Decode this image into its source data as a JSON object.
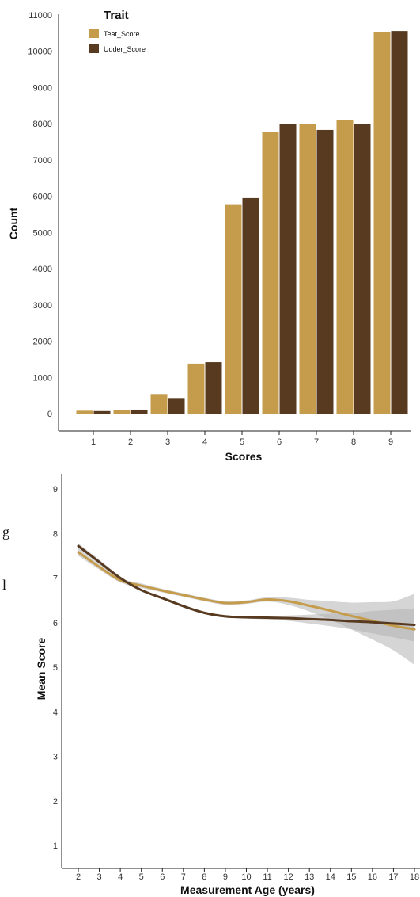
{
  "chart_data": [
    {
      "type": "bar",
      "title": "",
      "xlabel": "Scores",
      "ylabel": "Count",
      "categories": [
        "1",
        "2",
        "3",
        "4",
        "5",
        "6",
        "7",
        "8",
        "9"
      ],
      "ylim": [
        0,
        11000
      ],
      "yticks": [
        0,
        1000,
        2000,
        3000,
        4000,
        5000,
        6000,
        7000,
        8000,
        9000,
        10000,
        11000
      ],
      "legend": {
        "title": "Trait",
        "position": "top-left"
      },
      "series": [
        {
          "name": "Teat_Score",
          "color": "#c49c4c",
          "values": [
            80,
            100,
            540,
            1380,
            5760,
            7770,
            8000,
            8110,
            10520
          ]
        },
        {
          "name": "Udder_Score",
          "color": "#573a1f",
          "values": [
            70,
            110,
            430,
            1420,
            5950,
            8000,
            7830,
            8000,
            10560
          ]
        }
      ],
      "grid": false
    },
    {
      "type": "line",
      "title": "",
      "xlabel": "Measurement Age (years)",
      "ylabel": "Mean Score",
      "xticks": [
        2,
        3,
        4,
        5,
        6,
        7,
        8,
        9,
        10,
        11,
        12,
        13,
        14,
        15,
        16,
        17,
        18
      ],
      "yticks": [
        1,
        2,
        3,
        4,
        5,
        6,
        7,
        8,
        9
      ],
      "xlim": [
        2,
        18
      ],
      "ylim": [
        1,
        9
      ],
      "grid": false,
      "confidence_band_color": "#b3b3b3",
      "series": [
        {
          "color": "#c49c4c",
          "x": [
            2,
            3,
            4,
            5,
            6,
            7,
            8,
            9,
            10,
            11,
            12,
            13,
            14,
            15,
            16,
            17,
            18
          ],
          "y": [
            7.58,
            7.25,
            6.95,
            6.83,
            6.72,
            6.62,
            6.52,
            6.44,
            6.46,
            6.52,
            6.48,
            6.38,
            6.27,
            6.15,
            6.04,
            5.93,
            5.85
          ],
          "ci_lower": [
            7.5,
            7.19,
            6.9,
            6.78,
            6.68,
            6.58,
            6.48,
            6.4,
            6.42,
            6.47,
            6.4,
            6.25,
            6.06,
            5.85,
            5.62,
            5.38,
            5.05
          ],
          "ci_upper": [
            7.66,
            7.31,
            7.0,
            6.88,
            6.76,
            6.66,
            6.56,
            6.48,
            6.5,
            6.57,
            6.56,
            6.51,
            6.48,
            6.45,
            6.46,
            6.48,
            6.65
          ]
        },
        {
          "color": "#573a1f",
          "x": [
            2,
            3,
            4,
            5,
            6,
            7,
            8,
            9,
            10,
            11,
            12,
            13,
            14,
            15,
            16,
            17,
            18
          ],
          "y": [
            7.72,
            7.36,
            7.0,
            6.73,
            6.55,
            6.37,
            6.22,
            6.14,
            6.12,
            6.11,
            6.1,
            6.08,
            6.06,
            6.03,
            6.01,
            5.98,
            5.95
          ],
          "ci_lower": [
            7.66,
            7.31,
            6.96,
            6.7,
            6.52,
            6.34,
            6.19,
            6.11,
            6.09,
            6.07,
            6.04,
            5.98,
            5.92,
            5.85,
            5.76,
            5.67,
            5.58
          ],
          "ci_upper": [
            7.78,
            7.41,
            7.04,
            6.76,
            6.58,
            6.4,
            6.25,
            6.17,
            6.15,
            6.15,
            6.16,
            6.18,
            6.2,
            6.21,
            6.26,
            6.29,
            6.32
          ]
        }
      ]
    }
  ],
  "margin_text": {
    "glyph_1": "g",
    "glyph_2": "l"
  }
}
